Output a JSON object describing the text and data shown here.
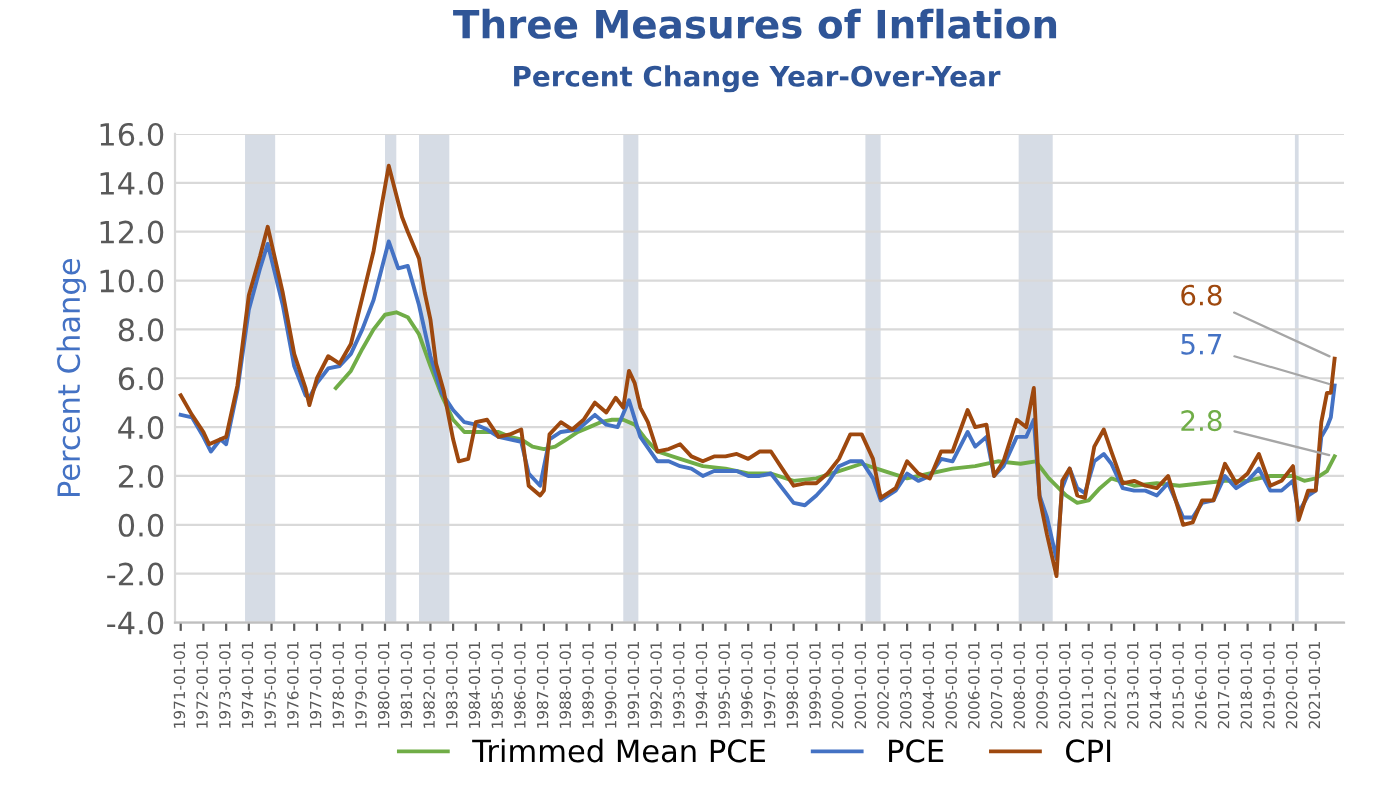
{
  "chart_data": {
    "type": "line",
    "title": "Three Measures of Inflation",
    "subtitle": "Percent Change Year-Over-Year",
    "ylabel": "Percent Change",
    "xlim": [
      "1970-10",
      "2022-04"
    ],
    "ylim": [
      -4,
      16
    ],
    "yticks": [
      {
        "value": -4,
        "label": "-4.0"
      },
      {
        "value": -2,
        "label": "-2.0"
      },
      {
        "value": 0,
        "label": "0.0"
      },
      {
        "value": 2,
        "label": "2.0"
      },
      {
        "value": 4,
        "label": "4.0"
      },
      {
        "value": 6,
        "label": "6.0"
      },
      {
        "value": 8,
        "label": "8.0"
      },
      {
        "value": 10,
        "label": "10.0"
      },
      {
        "value": 12,
        "label": "12.0"
      },
      {
        "value": 14,
        "label": "14.0"
      },
      {
        "value": 16,
        "label": "16.0"
      }
    ],
    "xticks": [
      "1971-01-01",
      "1972-01-01",
      "1973-01-01",
      "1974-01-01",
      "1975-01-01",
      "1976-01-01",
      "1977-01-01",
      "1978-01-01",
      "1979-01-01",
      "1980-01-01",
      "1981-01-01",
      "1982-01-01",
      "1983-01-01",
      "1984-01-01",
      "1985-01-01",
      "1986-01-01",
      "1987-01-01",
      "1988-01-01",
      "1989-01-01",
      "1990-01-01",
      "1991-01-01",
      "1992-01-01",
      "1993-01-01",
      "1994-01-01",
      "1995-01-01",
      "1996-01-01",
      "1997-01-01",
      "1998-01-01",
      "1999-01-01",
      "2000-01-01",
      "2001-01-01",
      "2002-01-01",
      "2003-01-01",
      "2004-01-01",
      "2005-01-01",
      "2006-01-01",
      "2007-01-01",
      "2008-01-01",
      "2009-01-01",
      "2010-01-01",
      "2011-01-01",
      "2012-01-01",
      "2013-01-01",
      "2014-01-01",
      "2015-01-01",
      "2016-01-01",
      "2017-01-01",
      "2018-01-01",
      "2019-01-01",
      "2020-01-01",
      "2021-01-01"
    ],
    "grid": "y",
    "legend": "bottom",
    "marker": "none",
    "line_style": "solid",
    "series": [
      {
        "name": "Trimmed Mean PCE",
        "color": "#70ad47",
        "x": [
          "1977-11",
          "1978-07",
          "1979-01",
          "1979-07",
          "1980-01",
          "1980-07",
          "1981-01",
          "1981-07",
          "1982-01",
          "1982-07",
          "1983-01",
          "1983-07",
          "1984-01",
          "1984-07",
          "1985-01",
          "1985-07",
          "1986-01",
          "1986-07",
          "1987-01",
          "1987-07",
          "1988-01",
          "1988-07",
          "1989-01",
          "1989-07",
          "1990-01",
          "1990-07",
          "1991-01",
          "1991-07",
          "1992-01",
          "1993-01",
          "1994-01",
          "1995-01",
          "1996-01",
          "1997-01",
          "1998-01",
          "1999-01",
          "2000-01",
          "2001-01",
          "2002-01",
          "2003-01",
          "2004-01",
          "2005-01",
          "2006-01",
          "2007-01",
          "2008-01",
          "2008-09",
          "2009-04",
          "2010-01",
          "2010-07",
          "2011-01",
          "2011-07",
          "2012-01",
          "2013-01",
          "2014-01",
          "2015-01",
          "2016-01",
          "2017-01",
          "2018-01",
          "2019-01",
          "2020-01",
          "2020-07",
          "2021-01",
          "2021-07",
          "2021-11"
        ],
        "values": [
          5.6,
          6.3,
          7.2,
          8.0,
          8.6,
          8.7,
          8.5,
          7.8,
          6.5,
          5.3,
          4.3,
          3.8,
          3.8,
          3.8,
          3.8,
          3.6,
          3.5,
          3.2,
          3.1,
          3.2,
          3.5,
          3.8,
          4.0,
          4.2,
          4.3,
          4.3,
          4.1,
          3.5,
          3.0,
          2.7,
          2.4,
          2.3,
          2.1,
          2.1,
          1.8,
          1.9,
          2.2,
          2.5,
          2.2,
          1.9,
          2.1,
          2.3,
          2.4,
          2.6,
          2.5,
          2.6,
          1.9,
          1.2,
          0.9,
          1.0,
          1.5,
          1.9,
          1.6,
          1.7,
          1.6,
          1.7,
          1.8,
          1.8,
          2.0,
          2.0,
          1.8,
          1.9,
          2.2,
          2.8
        ]
      },
      {
        "name": "PCE",
        "color": "#4472c4",
        "x": [
          "1971-01",
          "1971-07",
          "1972-01",
          "1972-05",
          "1972-10",
          "1973-01",
          "1973-07",
          "1974-01",
          "1974-07",
          "1974-11",
          "1975-07",
          "1976-01",
          "1976-07",
          "1976-09",
          "1977-01",
          "1977-07",
          "1978-01",
          "1978-07",
          "1979-01",
          "1979-07",
          "1980-03",
          "1980-08",
          "1981-01",
          "1981-07",
          "1982-01",
          "1982-07",
          "1983-01",
          "1983-07",
          "1984-01",
          "1984-07",
          "1985-01",
          "1985-07",
          "1986-01",
          "1986-05",
          "1986-11",
          "1987-04",
          "1987-10",
          "1988-07",
          "1989-04",
          "1989-10",
          "1990-04",
          "1990-10",
          "1991-04",
          "1992-01",
          "1992-07",
          "1993-01",
          "1993-07",
          "1994-01",
          "1994-07",
          "1995-01",
          "1995-07",
          "1996-01",
          "1996-07",
          "1997-01",
          "1997-07",
          "1998-01",
          "1998-07",
          "1999-01",
          "1999-07",
          "2000-01",
          "2000-07",
          "2001-01",
          "2001-07",
          "2001-11",
          "2002-07",
          "2003-01",
          "2003-07",
          "2004-01",
          "2004-07",
          "2005-01",
          "2005-09",
          "2006-01",
          "2006-07",
          "2006-11",
          "2007-04",
          "2007-11",
          "2008-04",
          "2008-08",
          "2008-11",
          "2009-03",
          "2009-08",
          "2009-11",
          "2010-03",
          "2010-07",
          "2010-11",
          "2011-04",
          "2011-09",
          "2012-01",
          "2012-07",
          "2013-01",
          "2013-07",
          "2014-01",
          "2014-07",
          "2014-11",
          "2015-03",
          "2015-08",
          "2016-01",
          "2016-07",
          "2017-01",
          "2017-07",
          "2018-01",
          "2018-07",
          "2019-01",
          "2019-07",
          "2020-01",
          "2020-04",
          "2020-09",
          "2021-01",
          "2021-04",
          "2021-07",
          "2021-09",
          "2021-11"
        ],
        "values": [
          4.5,
          4.4,
          3.6,
          3.0,
          3.5,
          3.3,
          5.5,
          8.8,
          10.5,
          11.5,
          9.0,
          6.5,
          5.3,
          5.2,
          5.8,
          6.4,
          6.5,
          7.0,
          8.0,
          9.2,
          11.6,
          10.5,
          10.6,
          9.0,
          6.9,
          5.4,
          4.7,
          4.2,
          4.1,
          3.9,
          3.6,
          3.5,
          3.4,
          2.1,
          1.6,
          3.5,
          3.8,
          3.9,
          4.5,
          4.1,
          4.0,
          5.1,
          3.6,
          2.6,
          2.6,
          2.4,
          2.3,
          2.0,
          2.2,
          2.2,
          2.2,
          2.0,
          2.0,
          2.1,
          1.5,
          0.9,
          0.8,
          1.2,
          1.7,
          2.4,
          2.6,
          2.6,
          1.9,
          1.0,
          1.4,
          2.1,
          1.8,
          2.0,
          2.7,
          2.6,
          3.8,
          3.2,
          3.6,
          2.0,
          2.4,
          3.6,
          3.6,
          4.3,
          1.2,
          0.3,
          -1.4,
          1.5,
          2.3,
          1.5,
          1.3,
          2.6,
          2.9,
          2.5,
          1.5,
          1.4,
          1.4,
          1.2,
          1.7,
          1.0,
          0.3,
          0.3,
          0.9,
          1.0,
          2.0,
          1.5,
          1.8,
          2.3,
          1.4,
          1.4,
          1.8,
          0.5,
          1.2,
          1.4,
          3.6,
          4.0,
          4.4,
          5.7
        ]
      },
      {
        "name": "CPI",
        "color": "#9e480e",
        "x": [
          "1971-01",
          "1971-07",
          "1972-01",
          "1972-04",
          "1973-01",
          "1973-07",
          "1974-01",
          "1974-07",
          "1974-11",
          "1975-07",
          "1976-01",
          "1976-07",
          "1976-09",
          "1977-01",
          "1977-07",
          "1978-01",
          "1978-07",
          "1979-01",
          "1979-07",
          "1980-03",
          "1980-07",
          "1980-10",
          "1981-01",
          "1981-07",
          "1981-10",
          "1982-01",
          "1982-04",
          "1982-08",
          "1983-01",
          "1983-04",
          "1983-09",
          "1984-01",
          "1984-07",
          "1985-01",
          "1985-07",
          "1986-01",
          "1986-05",
          "1986-11",
          "1987-01",
          "1987-04",
          "1987-10",
          "1988-04",
          "1988-10",
          "1989-04",
          "1989-10",
          "1990-03",
          "1990-07",
          "1990-10",
          "1991-01",
          "1991-04",
          "1991-08",
          "1992-01",
          "1992-07",
          "1993-01",
          "1993-07",
          "1994-01",
          "1994-07",
          "1995-01",
          "1995-07",
          "1996-01",
          "1996-07",
          "1997-01",
          "1997-07",
          "1998-01",
          "1998-07",
          "1999-01",
          "1999-07",
          "2000-01",
          "2000-07",
          "2001-01",
          "2001-07",
          "2001-11",
          "2002-07",
          "2003-01",
          "2003-07",
          "2004-01",
          "2004-07",
          "2005-01",
          "2005-09",
          "2006-01",
          "2006-07",
          "2006-11",
          "2007-04",
          "2007-11",
          "2008-04",
          "2008-08",
          "2008-11",
          "2009-03",
          "2009-08",
          "2009-11",
          "2010-03",
          "2010-07",
          "2010-11",
          "2011-04",
          "2011-09",
          "2012-01",
          "2012-07",
          "2013-01",
          "2013-07",
          "2014-01",
          "2014-07",
          "2014-11",
          "2015-03",
          "2015-08",
          "2016-01",
          "2016-07",
          "2017-01",
          "2017-07",
          "2018-01",
          "2018-07",
          "2019-01",
          "2019-07",
          "2020-01",
          "2020-04",
          "2020-09",
          "2021-01",
          "2021-04",
          "2021-07",
          "2021-09",
          "2021-11"
        ],
        "values": [
          5.3,
          4.5,
          3.8,
          3.3,
          3.6,
          5.7,
          9.4,
          11.0,
          12.2,
          9.5,
          7.0,
          5.6,
          4.9,
          6.0,
          6.9,
          6.6,
          7.4,
          9.3,
          11.2,
          14.7,
          13.5,
          12.6,
          12.0,
          10.9,
          9.5,
          8.4,
          6.6,
          5.5,
          3.5,
          2.6,
          2.7,
          4.2,
          4.3,
          3.6,
          3.7,
          3.9,
          1.6,
          1.2,
          1.4,
          3.7,
          4.2,
          3.9,
          4.3,
          5.0,
          4.6,
          5.2,
          4.8,
          6.3,
          5.8,
          4.8,
          4.2,
          3.0,
          3.1,
          3.3,
          2.8,
          2.6,
          2.8,
          2.8,
          2.9,
          2.7,
          3.0,
          3.0,
          2.3,
          1.6,
          1.7,
          1.7,
          2.1,
          2.7,
          3.7,
          3.7,
          2.7,
          1.1,
          1.5,
          2.6,
          2.1,
          1.9,
          3.0,
          3.0,
          4.7,
          4.0,
          4.1,
          2.0,
          2.6,
          4.3,
          4.0,
          5.6,
          1.1,
          -0.4,
          -2.1,
          1.8,
          2.3,
          1.2,
          1.1,
          3.2,
          3.9,
          3.0,
          1.7,
          1.8,
          1.6,
          1.5,
          2.0,
          1.0,
          0.0,
          0.1,
          1.0,
          1.0,
          2.5,
          1.7,
          2.1,
          2.9,
          1.6,
          1.8,
          2.4,
          0.2,
          1.4,
          1.4,
          4.2,
          5.4,
          5.4,
          6.8
        ]
      }
    ],
    "bands": [
      {
        "axis": "x",
        "from": "1973-11",
        "to": "1975-03",
        "color": "#d6dce5"
      },
      {
        "axis": "x",
        "from": "1980-01",
        "to": "1980-07",
        "color": "#d6dce5"
      },
      {
        "axis": "x",
        "from": "1981-07",
        "to": "1982-11",
        "color": "#d6dce5"
      },
      {
        "axis": "x",
        "from": "1990-07",
        "to": "1991-03",
        "color": "#d6dce5"
      },
      {
        "axis": "x",
        "from": "2001-03",
        "to": "2001-11",
        "color": "#d6dce5"
      },
      {
        "axis": "x",
        "from": "2007-12",
        "to": "2009-06",
        "color": "#d6dce5"
      },
      {
        "axis": "x",
        "from": "2020-02",
        "to": "2020-04",
        "color": "#d6dce5"
      }
    ],
    "annotations": [
      {
        "text": "2.8",
        "x": "2021-11",
        "y": 2.8
      },
      {
        "text": "5.7",
        "x": "2021-11",
        "y": 5.7
      },
      {
        "text": "6.8",
        "x": "2021-11",
        "y": 6.8
      }
    ]
  }
}
